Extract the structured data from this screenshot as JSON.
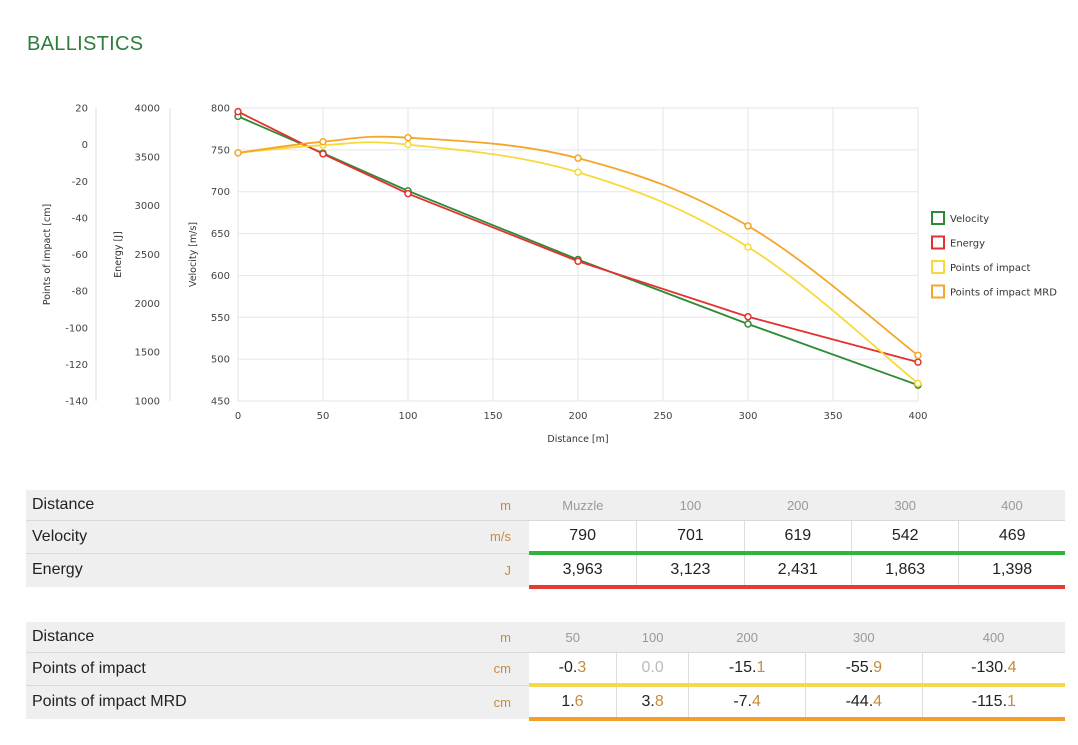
{
  "page": {
    "title": "BALLISTICS"
  },
  "colors": {
    "velocity": "#2e8b35",
    "energy": "#e53030",
    "poi": "#f8d93a",
    "poi_mrd": "#f5a52a",
    "title": "#2e7d3a",
    "unit": "#c98a3c"
  },
  "chart_data": {
    "type": "line",
    "xlabel": "Distance [m]",
    "x_ticks": [
      "0",
      "50",
      "100",
      "150",
      "200",
      "250",
      "300",
      "350",
      "400"
    ],
    "xlim": [
      0,
      400
    ],
    "axes": [
      {
        "label": "Velocity [m/s]",
        "ylim": [
          450,
          800
        ],
        "ticks": [
          "450",
          "500",
          "550",
          "600",
          "650",
          "700",
          "750",
          "800"
        ]
      },
      {
        "label": "Energy [J]",
        "ylim": [
          1000,
          4000
        ],
        "ticks": [
          "1000",
          "1500",
          "2000",
          "2500",
          "3000",
          "3500",
          "4000"
        ]
      },
      {
        "label": "Points of impact [cm]",
        "ylim": [
          -140,
          20
        ],
        "ticks": [
          "-140",
          "-120",
          "-100",
          "-80",
          "-60",
          "-40",
          "-20",
          "0",
          "20"
        ]
      }
    ],
    "legend_position": "right",
    "series": [
      {
        "name": "Velocity",
        "axis": "Velocity [m/s]",
        "x": [
          0,
          50,
          100,
          200,
          300,
          400
        ],
        "y": [
          790,
          746,
          701,
          619,
          542,
          469
        ]
      },
      {
        "name": "Energy",
        "axis": "Energy [J]",
        "x": [
          0,
          50,
          100,
          200,
          300,
          400
        ],
        "y": [
          3963,
          3530,
          3123,
          2431,
          1863,
          1398
        ]
      },
      {
        "name": "Points of impact",
        "axis": "Points of impact [cm]",
        "x": [
          0,
          50,
          100,
          200,
          300,
          400
        ],
        "y": [
          -4.5,
          -0.3,
          0.0,
          -15.1,
          -55.9,
          -130.4
        ]
      },
      {
        "name": "Points of impact MRD",
        "axis": "Points of impact [cm]",
        "x": [
          0,
          50,
          100,
          200,
          300,
          400
        ],
        "y": [
          -4.5,
          1.6,
          3.8,
          -7.4,
          -44.4,
          -115.1
        ]
      }
    ]
  },
  "table1": {
    "header": {
      "label": "Distance",
      "unit": "m",
      "cols": [
        "Muzzle",
        "100",
        "200",
        "300",
        "400"
      ]
    },
    "rows": [
      {
        "label": "Velocity",
        "unit": "m/s",
        "values": [
          "790",
          "701",
          "619",
          "542",
          "469"
        ]
      },
      {
        "label": "Energy",
        "unit": "J",
        "values": [
          "3,963",
          "3,123",
          "2,431",
          "1,863",
          "1,398"
        ]
      }
    ]
  },
  "table2": {
    "header": {
      "label": "Distance",
      "unit": "m",
      "cols": [
        "50",
        "100",
        "200",
        "300",
        "400"
      ]
    },
    "rows": [
      {
        "label": "Points of impact",
        "unit": "cm",
        "values": [
          {
            "int": "-0.",
            "dec": "3"
          },
          {
            "int": "0.",
            "dec": "0"
          },
          {
            "int": "-15.",
            "dec": "1"
          },
          {
            "int": "-55.",
            "dec": "9"
          },
          {
            "int": "-130.",
            "dec": "4"
          }
        ]
      },
      {
        "label": "Points of impact MRD",
        "unit": "cm",
        "values": [
          {
            "int": "1.",
            "dec": "6"
          },
          {
            "int": "3.",
            "dec": "8"
          },
          {
            "int": "-7.",
            "dec": "4"
          },
          {
            "int": "-44.",
            "dec": "4"
          },
          {
            "int": "-115.",
            "dec": "1"
          }
        ]
      }
    ]
  }
}
